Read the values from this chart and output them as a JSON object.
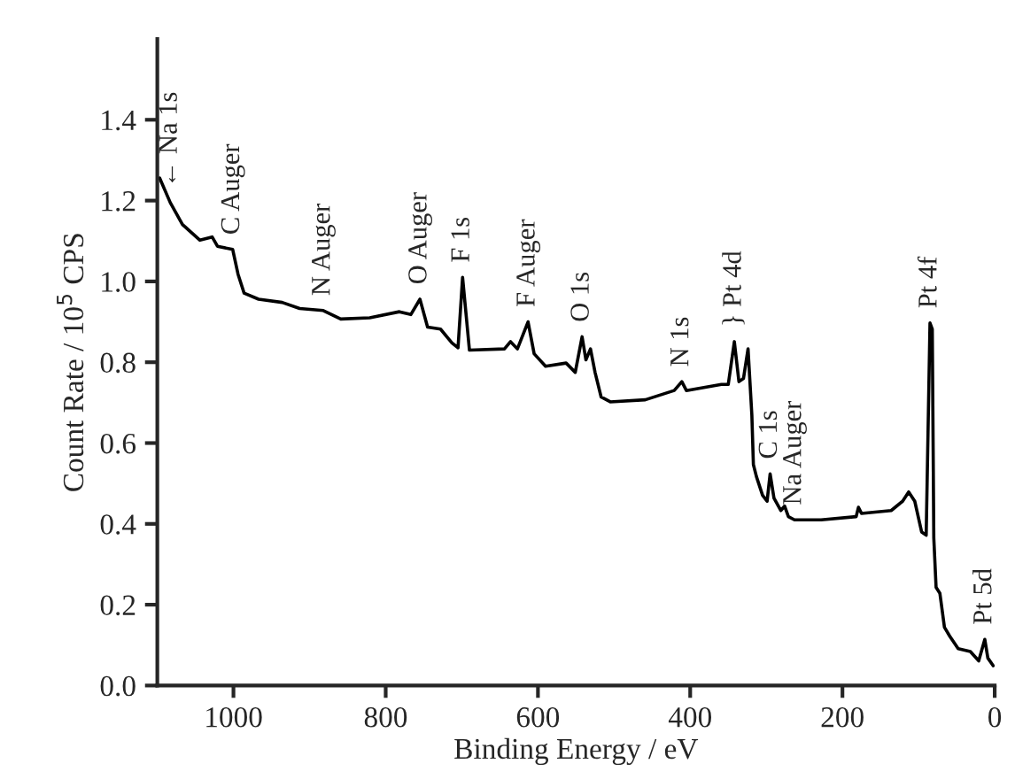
{
  "chart_data": {
    "type": "line",
    "xlabel": "Binding Energy / eV",
    "ylabel": "Count Rate / 10$^{5}$ CPS",
    "xlim": [
      1100,
      0
    ],
    "ylim": [
      0,
      1.6
    ],
    "xticks": [
      1000,
      800,
      600,
      400,
      200,
      0
    ],
    "yticks": [
      {
        "value": 0,
        "label": "0.0"
      },
      {
        "value": 0.2,
        "label": "0.2"
      },
      {
        "value": 0.4,
        "label": "0.4"
      },
      {
        "value": 0.6,
        "label": "0.6"
      },
      {
        "value": 0.8,
        "label": "0.8"
      },
      {
        "value": 1.0,
        "label": "1.0"
      },
      {
        "value": 1.2,
        "label": "1.2"
      },
      {
        "value": 1.4,
        "label": "1.4"
      }
    ],
    "grid": false,
    "legend": false,
    "marker": "none",
    "line_style": "solid",
    "series": [
      {
        "color": "#000000",
        "x": [
          1097,
          1083,
          1067,
          1044,
          1028,
          1021,
          1001,
          994,
          986,
          967,
          936,
          913,
          882,
          859,
          821,
          782,
          767,
          755,
          745,
          728,
          713,
          705,
          699,
          690,
          644,
          636,
          627,
          613,
          605,
          590,
          563,
          551,
          542,
          537,
          531,
          525,
          517,
          505,
          459,
          421,
          411,
          405,
          359,
          350,
          342,
          336,
          330,
          324,
          319,
          317,
          313,
          305,
          299,
          295,
          290,
          281,
          276,
          271,
          263,
          228,
          182,
          179,
          175,
          136,
          121,
          113,
          105,
          96,
          90,
          85,
          82,
          80,
          77,
          72,
          66,
          59,
          48,
          32,
          21,
          13,
          9,
          2
        ],
        "values": [
          1.256,
          1.195,
          1.141,
          1.102,
          1.11,
          1.087,
          1.079,
          1.018,
          0.971,
          0.956,
          0.948,
          0.933,
          0.928,
          0.907,
          0.91,
          0.925,
          0.918,
          0.956,
          0.887,
          0.882,
          0.848,
          0.836,
          1.01,
          0.83,
          0.833,
          0.851,
          0.833,
          0.9,
          0.821,
          0.79,
          0.798,
          0.775,
          0.863,
          0.806,
          0.833,
          0.775,
          0.714,
          0.702,
          0.707,
          0.73,
          0.752,
          0.73,
          0.745,
          0.745,
          0.851,
          0.752,
          0.76,
          0.833,
          0.669,
          0.547,
          0.517,
          0.471,
          0.456,
          0.524,
          0.464,
          0.433,
          0.444,
          0.418,
          0.41,
          0.41,
          0.418,
          0.441,
          0.426,
          0.433,
          0.456,
          0.479,
          0.456,
          0.38,
          0.372,
          0.897,
          0.882,
          0.365,
          0.243,
          0.228,
          0.144,
          0.122,
          0.091,
          0.084,
          0.061,
          0.114,
          0.068,
          0.049
        ]
      }
    ],
    "annotations": [
      {
        "text": "← Na 1s",
        "x": 1083,
        "y": 1.195
      },
      {
        "text": "C Auger",
        "x": 1001,
        "y": 1.079
      },
      {
        "text": "N Auger",
        "x": 882,
        "y": 0.928
      },
      {
        "text": "O Auger",
        "x": 755,
        "y": 0.956
      },
      {
        "text": "F 1s",
        "x": 699,
        "y": 1.01
      },
      {
        "text": "F Auger",
        "x": 613,
        "y": 0.9
      },
      {
        "text": "O 1s",
        "x": 542,
        "y": 0.863
      },
      {
        "text": "N 1s",
        "x": 411,
        "y": 0.752
      },
      {
        "text": "} Pt 4d",
        "x": 342,
        "y": 0.851
      },
      {
        "text": "C 1s",
        "x": 295,
        "y": 0.524
      },
      {
        "text": "Na Auger",
        "x": 263,
        "y": 0.41
      },
      {
        "text": "Pt 4f",
        "x": 85,
        "y": 0.897
      },
      {
        "text": "Pt 5d",
        "x": 13,
        "y": 0.114
      }
    ]
  }
}
